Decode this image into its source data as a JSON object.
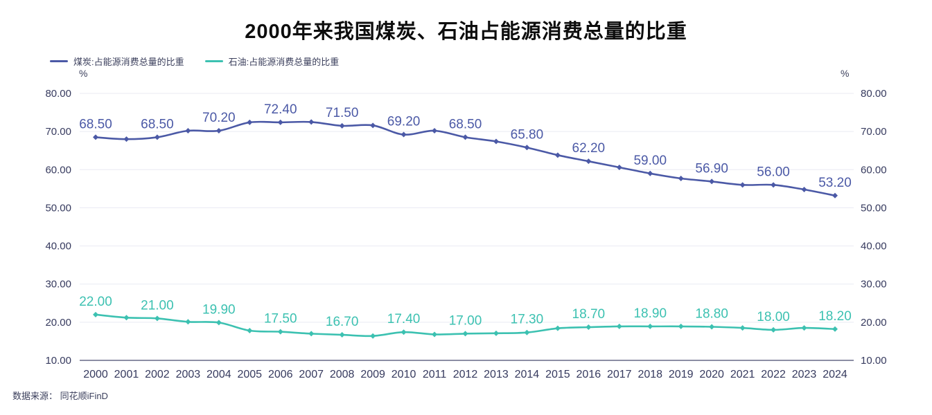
{
  "title": "2000年来我国煤炭、石油占能源消费总量的比重",
  "source": "数据来源： 同花顺iFinD",
  "axes": {
    "unit": "%"
  },
  "colors": {
    "coal": "#4b59a6",
    "oil": "#3cc1b1",
    "grid": "#e9eaf2",
    "axis_line": "#474b6e",
    "tick_text": "#363a5e",
    "title_text": "#0d0d0d"
  },
  "chart_data": {
    "type": "line",
    "title": "2000年来我国煤炭、石油占能源消费总量的比重",
    "xlabel": "",
    "ylabel": "%",
    "ylim": [
      10,
      80
    ],
    "yticks": [
      "80.00",
      "70.00",
      "60.00",
      "50.00",
      "40.00",
      "30.00",
      "20.00",
      "10.00"
    ],
    "grid": true,
    "legend_position": "top-left",
    "x": [
      2000,
      2001,
      2002,
      2003,
      2004,
      2005,
      2006,
      2007,
      2008,
      2009,
      2010,
      2011,
      2012,
      2013,
      2014,
      2015,
      2016,
      2017,
      2018,
      2019,
      2020,
      2021,
      2022,
      2023,
      2024
    ],
    "labeled_x": [
      2000,
      2002,
      2004,
      2006,
      2008,
      2010,
      2012,
      2014,
      2016,
      2018,
      2020,
      2022,
      2024
    ],
    "series": [
      {
        "id": "coal",
        "name": "煤炭:占能源消费总量的比重",
        "color": "#4b59a6",
        "values": [
          68.5,
          68.0,
          68.5,
          70.2,
          70.2,
          72.4,
          72.4,
          72.5,
          71.5,
          71.6,
          69.2,
          70.2,
          68.5,
          67.4,
          65.8,
          63.8,
          62.2,
          60.6,
          59.0,
          57.7,
          56.9,
          56.0,
          56.0,
          54.8,
          53.2
        ],
        "point_labels": [
          "68.50",
          "68.50",
          "70.20",
          "72.40",
          "71.50",
          "69.20",
          "68.50",
          "65.80",
          "62.20",
          "59.00",
          "56.90",
          "56.00",
          "53.20"
        ]
      },
      {
        "id": "oil",
        "name": "石油:占能源消费总量的比重",
        "color": "#3cc1b1",
        "values": [
          22.0,
          21.2,
          21.0,
          20.1,
          19.9,
          17.8,
          17.5,
          17.0,
          16.7,
          16.4,
          17.4,
          16.8,
          17.0,
          17.1,
          17.3,
          18.4,
          18.7,
          18.9,
          18.9,
          18.9,
          18.8,
          18.5,
          18.0,
          18.5,
          18.2
        ],
        "point_labels": [
          "22.00",
          "21.00",
          "19.90",
          "17.50",
          "16.70",
          "17.40",
          "17.00",
          "17.30",
          "18.70",
          "18.90",
          "18.80",
          "18.00",
          "18.20"
        ]
      }
    ]
  }
}
